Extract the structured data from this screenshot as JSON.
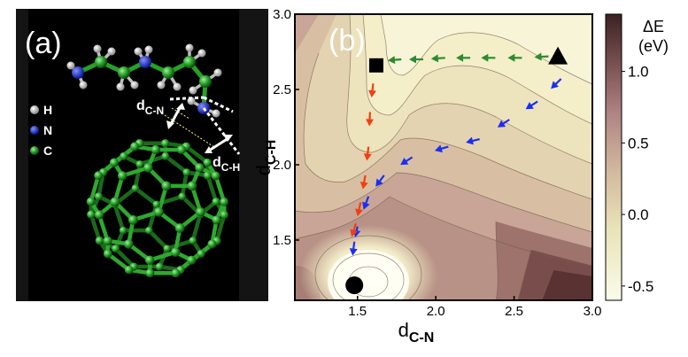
{
  "panel_a": {
    "label": "(a)",
    "legend": [
      {
        "symbol": "H",
        "color": "#e8e8e8"
      },
      {
        "symbol": "N",
        "color": "#1a2be0"
      },
      {
        "symbol": "C",
        "color": "#1f8a1f"
      }
    ],
    "annotation_cn": {
      "main": "d",
      "sub": "C-N"
    },
    "annotation_ch": {
      "main": "d",
      "sub": "C-H"
    }
  },
  "panel_b": {
    "label": "(b)",
    "xlabel_main": "d",
    "xlabel_sub": "C-N",
    "ylabel_main": "d",
    "ylabel_sub": "C-H",
    "colorbar_title": "ΔE",
    "colorbar_unit": "(eV)",
    "colorbar_ticks": [
      "1.0",
      "0.5",
      "0.0",
      "-0.5"
    ]
  },
  "chart_data": {
    "type": "heatmap",
    "xlim": [
      1.1,
      3.0
    ],
    "ylim": [
      1.1,
      3.0
    ],
    "xticks": [
      1.5,
      2.0,
      2.5,
      3.0
    ],
    "yticks": [
      1.5,
      2.0,
      2.5,
      3.0
    ],
    "xtick_labels": [
      "1.5",
      "2.0",
      "2.5",
      "3.0"
    ],
    "ytick_labels": [
      "1.5",
      "2.0",
      "2.5",
      "3.0"
    ],
    "colorbar_range": [
      -0.6,
      1.4
    ],
    "markers": [
      {
        "shape": "triangle",
        "x": 2.78,
        "y": 2.72
      },
      {
        "shape": "square",
        "x": 1.62,
        "y": 2.66
      },
      {
        "shape": "circle",
        "x": 1.48,
        "y": 1.2
      }
    ],
    "paths": [
      {
        "color": "#2e8b2e",
        "points": [
          [
            2.72,
            2.72
          ],
          [
            2.55,
            2.71
          ],
          [
            2.38,
            2.71
          ],
          [
            2.22,
            2.71
          ],
          [
            2.06,
            2.71
          ],
          [
            1.92,
            2.7
          ],
          [
            1.78,
            2.7
          ],
          [
            1.66,
            2.69
          ]
        ]
      },
      {
        "color": "#1c2ef0",
        "points": [
          [
            2.8,
            2.57
          ],
          [
            2.65,
            2.42
          ],
          [
            2.47,
            2.3
          ],
          [
            2.28,
            2.17
          ],
          [
            2.08,
            2.12
          ],
          [
            1.85,
            2.05
          ],
          [
            1.67,
            1.93
          ],
          [
            1.57,
            1.79
          ],
          [
            1.5,
            1.59
          ],
          [
            1.48,
            1.49
          ],
          [
            1.46,
            1.32
          ]
        ]
      },
      {
        "color": "#f04010",
        "points": [
          [
            1.6,
            2.54
          ],
          [
            1.58,
            2.35
          ],
          [
            1.57,
            2.12
          ],
          [
            1.55,
            1.93
          ],
          [
            1.52,
            1.75
          ],
          [
            1.49,
            1.61
          ],
          [
            1.45,
            1.48
          ]
        ]
      }
    ]
  }
}
